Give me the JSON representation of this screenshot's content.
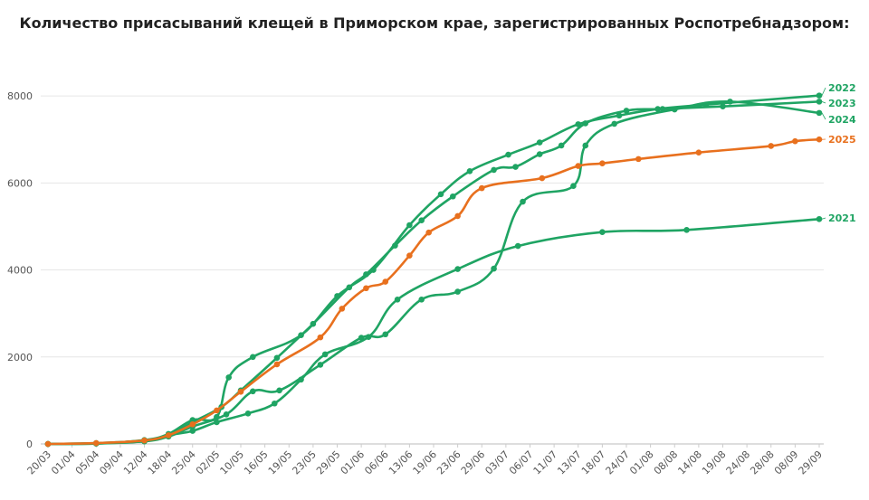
{
  "chart_data": {
    "type": "line",
    "title": "Количество присасываний клещей в Приморском крае, зарегистрированных Роспотребнадзором:",
    "ylim": [
      0,
      9000
    ],
    "yticks": [
      0,
      2000,
      4000,
      6000,
      8000
    ],
    "categories": [
      "20/03",
      "01/04",
      "05/04",
      "09/04",
      "12/04",
      "18/04",
      "25/04",
      "02/05",
      "10/05",
      "16/05",
      "19/05",
      "23/05",
      "29/05",
      "01/06",
      "06/06",
      "13/06",
      "19/06",
      "23/06",
      "29/06",
      "03/07",
      "06/07",
      "11/07",
      "13/07",
      "18/07",
      "24/07",
      "01/08",
      "08/08",
      "14/08",
      "19/08",
      "24/08",
      "28/08",
      "08/09",
      "29/09"
    ],
    "grid": "horizontal",
    "colors": {
      "green": "#1fa463",
      "orange": "#e8701e"
    },
    "series": [
      {
        "name": "2022",
        "color": "#1fa463",
        "points": [
          [
            0,
            0
          ],
          [
            2,
            10
          ],
          [
            4,
            90
          ],
          [
            5,
            230
          ],
          [
            6,
            550
          ],
          [
            7,
            620
          ],
          [
            7.5,
            1530
          ],
          [
            8.5,
            2000
          ],
          [
            10.5,
            2500
          ],
          [
            12,
            3400
          ],
          [
            13.5,
            4000
          ],
          [
            15,
            5030
          ],
          [
            16.3,
            5740
          ],
          [
            17.5,
            6270
          ],
          [
            19.1,
            6650
          ],
          [
            20.4,
            6930
          ],
          [
            22,
            7350
          ],
          [
            23.7,
            7550
          ],
          [
            25.3,
            7700
          ],
          [
            27.3,
            7800
          ],
          [
            32,
            8010
          ]
        ]
      },
      {
        "name": "2023",
        "color": "#1fa463",
        "points": [
          [
            0,
            0
          ],
          [
            2,
            20
          ],
          [
            4,
            80
          ],
          [
            5,
            200
          ],
          [
            6,
            500
          ],
          [
            7.2,
            850
          ],
          [
            8,
            1230
          ],
          [
            9.5,
            1980
          ],
          [
            11,
            2760
          ],
          [
            12.5,
            3600
          ],
          [
            13.2,
            3900
          ],
          [
            14.4,
            4560
          ],
          [
            15.5,
            5140
          ],
          [
            16.8,
            5690
          ],
          [
            18.5,
            6300
          ],
          [
            19.4,
            6370
          ],
          [
            20.4,
            6660
          ],
          [
            21.3,
            6860
          ],
          [
            22.3,
            7370
          ],
          [
            24,
            7660
          ],
          [
            25.5,
            7700
          ],
          [
            28,
            7760
          ],
          [
            32,
            7870
          ]
        ]
      },
      {
        "name": "2024",
        "color": "#1fa463",
        "points": [
          [
            0,
            0
          ],
          [
            2,
            15
          ],
          [
            4,
            60
          ],
          [
            5,
            170
          ],
          [
            6,
            400
          ],
          [
            7.4,
            680
          ],
          [
            8.5,
            1210
          ],
          [
            9.6,
            1230
          ],
          [
            11.3,
            1820
          ],
          [
            13,
            2440
          ],
          [
            14,
            2520
          ],
          [
            15.5,
            3320
          ],
          [
            17,
            3500
          ],
          [
            18.5,
            4030
          ],
          [
            19.7,
            5570
          ],
          [
            21.8,
            5930
          ],
          [
            22.3,
            6860
          ],
          [
            23.5,
            7360
          ],
          [
            26,
            7690
          ],
          [
            28.3,
            7870
          ],
          [
            32,
            7610
          ]
        ]
      },
      {
        "name": "2025",
        "color": "#e8701e",
        "points": [
          [
            0,
            0
          ],
          [
            2,
            20
          ],
          [
            4,
            80
          ],
          [
            5,
            200
          ],
          [
            6,
            450
          ],
          [
            7,
            770
          ],
          [
            8,
            1200
          ],
          [
            9.5,
            1830
          ],
          [
            11.3,
            2450
          ],
          [
            12.2,
            3110
          ],
          [
            13.2,
            3580
          ],
          [
            14,
            3730
          ],
          [
            15,
            4330
          ],
          [
            15.8,
            4860
          ],
          [
            17,
            5240
          ],
          [
            18,
            5880
          ],
          [
            20.5,
            6110
          ],
          [
            22,
            6390
          ],
          [
            23,
            6450
          ],
          [
            24.5,
            6550
          ],
          [
            27,
            6700
          ],
          [
            30,
            6850
          ],
          [
            31,
            6960
          ],
          [
            32,
            7000
          ]
        ]
      },
      {
        "name": "2021",
        "color": "#1fa463",
        "points": [
          [
            0,
            0
          ],
          [
            2,
            10
          ],
          [
            4,
            60
          ],
          [
            5,
            200
          ],
          [
            6,
            300
          ],
          [
            7,
            500
          ],
          [
            8.3,
            700
          ],
          [
            9.4,
            930
          ],
          [
            10.5,
            1480
          ],
          [
            11.5,
            2060
          ],
          [
            13.3,
            2460
          ],
          [
            14.5,
            3320
          ],
          [
            17,
            4020
          ],
          [
            19.5,
            4550
          ],
          [
            23,
            4870
          ],
          [
            26.5,
            4920
          ],
          [
            32,
            5170
          ]
        ]
      }
    ],
    "label_order": [
      "2022",
      "2023",
      "2024",
      "2025",
      "2021"
    ]
  }
}
